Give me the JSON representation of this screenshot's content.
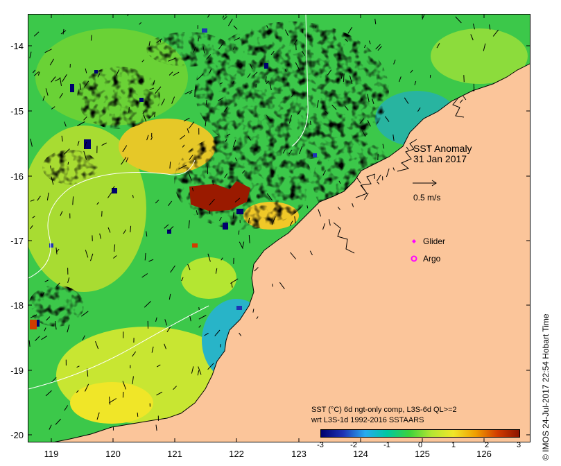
{
  "map": {
    "annotation_title": "SST Anomaly",
    "annotation_date": "31 Jan 2017",
    "vector_scale_label": "0.5 m/s",
    "legend": [
      {
        "label": "Glider",
        "color": "#ff00ff",
        "icon": "glider-diamond-icon"
      },
      {
        "label": "Argo",
        "color": "#ff00ff",
        "icon": "argo-circle-icon"
      }
    ],
    "land_color": "#fbc59a",
    "y_ticks": [
      "-14",
      "-15",
      "-16",
      "-17",
      "-18",
      "-19",
      "-20"
    ],
    "x_ticks": [
      "119",
      "120",
      "121",
      "122",
      "123",
      "124",
      "125",
      "126"
    ]
  },
  "colorbar": {
    "title_line1": "SST (°C) 6d ngt-only comp, L3S-6d QL>=2",
    "title_line2": "wrt L3S-1d 1992-2016 SSTAARS",
    "labels": [
      "-3",
      "-2",
      "-1",
      "0",
      "1",
      "2",
      "3"
    ],
    "colors": [
      "#00006e",
      "#1e32b4",
      "#28aaf0",
      "#00c8a0",
      "#3cd23c",
      "#b4e632",
      "#f0e628",
      "#f0a000",
      "#d23c00",
      "#8c1400"
    ]
  },
  "footer": "© IMOS 24-Jul-2017 22:54 Hobart Time"
}
